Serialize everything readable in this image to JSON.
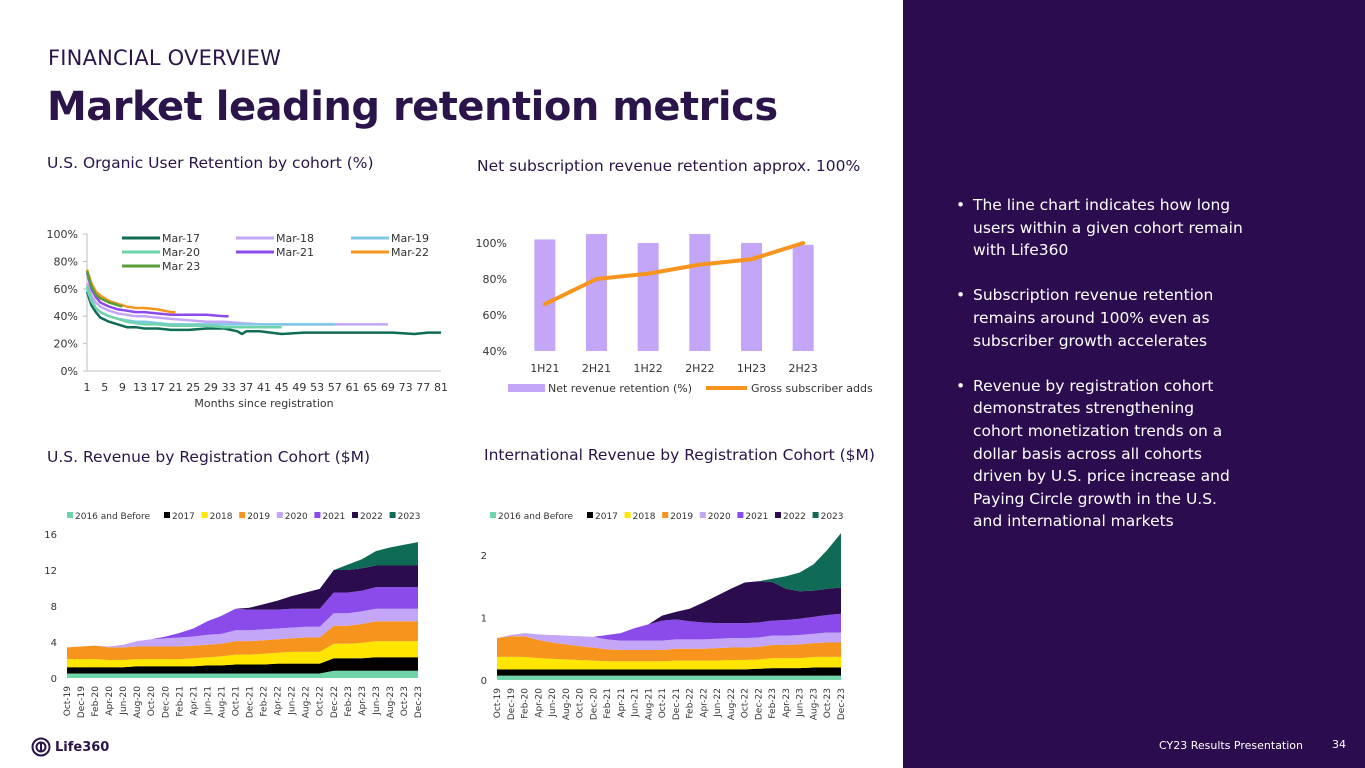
{
  "header": {
    "kicker": "FINANCIAL OVERVIEW",
    "title": "Market leading retention metrics"
  },
  "colors": {
    "brand_dark": "#2b0d4f",
    "lavender": "#c3a6f8",
    "orange": "#f7941d"
  },
  "bullets": [
    "The line chart indicates how long users within a given cohort remain with Life360",
    "Subscription revenue retention remains around 100% even as subscriber growth accelerates",
    "Revenue by registration cohort demonstrates strengthening cohort monetization trends on a dollar basis across all cohorts driven by U.S. price increase and Paying Circle growth in the U.S. and international markets"
  ],
  "footer": {
    "label": "CY23 Results Presentation",
    "page": "34",
    "logo_text": "Life360",
    "logo_icon": "life360-logo-icon"
  },
  "chart_data": [
    {
      "type": "line",
      "title": "U.S. Organic User Retention by cohort (%)",
      "xlabel": "Months since registration",
      "ylabel": "",
      "x_ticks": [
        "1",
        "5",
        "9",
        "13",
        "17",
        "21",
        "25",
        "29",
        "33",
        "37",
        "41",
        "45",
        "49",
        "53",
        "57",
        "61",
        "65",
        "69",
        "73",
        "77",
        "81"
      ],
      "xlim": [
        1,
        81
      ],
      "y_ticks": [
        "0%",
        "20%",
        "40%",
        "60%",
        "80%",
        "100%"
      ],
      "ylim": [
        0,
        100
      ],
      "legend_position": "top",
      "series": [
        {
          "name": "Mar-17",
          "color": "#0f6b55",
          "width": 2.5,
          "x": [
            1,
            2,
            3,
            4,
            6,
            8,
            10,
            12,
            14,
            17,
            20,
            24,
            28,
            32,
            35,
            36,
            37,
            40,
            45,
            50,
            55,
            60,
            65,
            70,
            75,
            78,
            81
          ],
          "values": [
            58,
            48,
            43,
            39,
            36,
            34,
            32,
            32,
            31,
            31,
            30,
            30,
            31,
            31,
            29,
            27,
            29,
            29,
            27,
            28,
            28,
            28,
            28,
            28,
            27,
            28,
            28
          ]
        },
        {
          "name": "Mar-18",
          "color": "#c3a6f8",
          "width": 2.5,
          "x": [
            1,
            2,
            3,
            4,
            6,
            8,
            10,
            12,
            14,
            17,
            20,
            24,
            28,
            32,
            36,
            40,
            45,
            50,
            55,
            60,
            65,
            69
          ],
          "values": [
            64,
            55,
            50,
            47,
            44,
            42,
            41,
            40,
            40,
            39,
            38,
            37,
            36,
            36,
            35,
            34,
            34,
            34,
            34,
            34,
            34,
            34
          ]
        },
        {
          "name": "Mar-19",
          "color": "#7ec8e3",
          "width": 2.5,
          "x": [
            1,
            2,
            3,
            4,
            6,
            8,
            10,
            12,
            14,
            17,
            20,
            24,
            28,
            32,
            36,
            40,
            45,
            50,
            55,
            57
          ],
          "values": [
            60,
            51,
            46,
            43,
            40,
            38,
            37,
            36,
            36,
            35,
            34,
            34,
            34,
            34,
            34,
            34,
            34,
            34,
            34,
            34
          ]
        },
        {
          "name": "Mar-20",
          "color": "#6fd4a8",
          "width": 2.5,
          "x": [
            1,
            2,
            3,
            4,
            6,
            8,
            10,
            12,
            14,
            17,
            20,
            24,
            28,
            32,
            36,
            40,
            45
          ],
          "values": [
            62,
            52,
            46,
            43,
            40,
            38,
            36,
            35,
            34,
            34,
            33,
            33,
            33,
            32,
            32,
            32,
            32
          ]
        },
        {
          "name": "Mar-21",
          "color": "#8b4bea",
          "width": 2.5,
          "x": [
            1,
            2,
            3,
            4,
            6,
            8,
            10,
            12,
            14,
            17,
            20,
            24,
            28,
            32,
            33
          ],
          "values": [
            72,
            60,
            54,
            50,
            47,
            45,
            44,
            43,
            43,
            42,
            41,
            41,
            41,
            40,
            40
          ]
        },
        {
          "name": "Mar-22",
          "color": "#f7941d",
          "width": 2.5,
          "x": [
            1,
            2,
            3,
            4,
            6,
            8,
            10,
            12,
            14,
            17,
            20,
            21
          ],
          "values": [
            74,
            64,
            58,
            55,
            51,
            49,
            47,
            46,
            46,
            45,
            43,
            43
          ]
        },
        {
          "name": "Mar 23",
          "color": "#5a9e3a",
          "width": 2.5,
          "x": [
            1,
            2,
            3,
            4,
            6,
            8,
            9
          ],
          "values": [
            73,
            62,
            56,
            53,
            50,
            48,
            47
          ]
        }
      ]
    },
    {
      "type": "bar",
      "title": "Net subscription revenue retention approx. 100%",
      "categories": [
        "1H21",
        "2H21",
        "1H22",
        "2H22",
        "1H23",
        "2H23"
      ],
      "y_ticks": [
        "40%",
        "60%",
        "80%",
        "100%"
      ],
      "ylim": [
        40,
        110
      ],
      "legend_position": "bottom",
      "series": [
        {
          "name": "Net revenue retention (%)",
          "kind": "bar",
          "color": "#c3a6f8",
          "values": [
            102,
            105,
            100,
            105,
            100,
            99
          ]
        },
        {
          "name": "Gross subscriber adds",
          "kind": "line",
          "color": "#f7941d",
          "values": [
            66,
            80,
            83,
            88,
            91,
            100
          ]
        }
      ]
    },
    {
      "type": "area",
      "stacked": true,
      "title": "U.S. Revenue by Registration Cohort ($M)",
      "x_ticks": [
        "Oct-19",
        "Dec-19",
        "Feb-20",
        "Apr-20",
        "Jun-20",
        "Aug-20",
        "Oct-20",
        "Dec-20",
        "Feb-21",
        "Apr-21",
        "Jun-21",
        "Aug-21",
        "Oct-21",
        "Dec-21",
        "Feb-22",
        "Apr-22",
        "Jun-22",
        "Aug-22",
        "Oct-22",
        "Dec-22",
        "Feb-23",
        "Apr-23",
        "Jun-23",
        "Aug-23",
        "Oct-23",
        "Dec-23"
      ],
      "y_ticks": [
        "0",
        "4",
        "8",
        "12",
        "16"
      ],
      "ylim": [
        0,
        16
      ],
      "legend_position": "top",
      "series": [
        {
          "name": "2016 and Before",
          "color": "#6fd4a8",
          "values": [
            0.5,
            0.5,
            0.5,
            0.5,
            0.5,
            0.5,
            0.5,
            0.5,
            0.5,
            0.5,
            0.5,
            0.5,
            0.5,
            0.5,
            0.5,
            0.5,
            0.5,
            0.5,
            0.5,
            0.8,
            0.8,
            0.8,
            0.8,
            0.8,
            0.8,
            0.8
          ]
        },
        {
          "name": "2017",
          "color": "#000000",
          "values": [
            0.7,
            0.7,
            0.7,
            0.7,
            0.7,
            0.8,
            0.8,
            0.8,
            0.8,
            0.8,
            0.9,
            0.9,
            1.0,
            1.0,
            1.0,
            1.1,
            1.1,
            1.1,
            1.1,
            1.4,
            1.4,
            1.4,
            1.5,
            1.5,
            1.5,
            1.5
          ]
        },
        {
          "name": "2018",
          "color": "#ffe600",
          "values": [
            0.9,
            0.9,
            0.9,
            0.8,
            0.8,
            0.8,
            0.8,
            0.8,
            0.8,
            0.9,
            0.9,
            1.0,
            1.1,
            1.1,
            1.2,
            1.2,
            1.3,
            1.3,
            1.3,
            1.6,
            1.6,
            1.7,
            1.8,
            1.8,
            1.8,
            1.8
          ]
        },
        {
          "name": "2019",
          "color": "#f7941d",
          "values": [
            1.3,
            1.4,
            1.5,
            1.4,
            1.4,
            1.4,
            1.4,
            1.4,
            1.4,
            1.4,
            1.4,
            1.4,
            1.5,
            1.5,
            1.5,
            1.5,
            1.5,
            1.6,
            1.6,
            2.0,
            2.0,
            2.1,
            2.2,
            2.2,
            2.2,
            2.2
          ]
        },
        {
          "name": "2020",
          "color": "#c3a6f8",
          "values": [
            0.0,
            0.0,
            0.0,
            0.1,
            0.3,
            0.6,
            0.8,
            0.9,
            1.0,
            1.0,
            1.1,
            1.1,
            1.2,
            1.2,
            1.2,
            1.2,
            1.2,
            1.2,
            1.2,
            1.4,
            1.4,
            1.4,
            1.4,
            1.4,
            1.4,
            1.4
          ]
        },
        {
          "name": "2021",
          "color": "#8b4bea",
          "values": [
            0.0,
            0.0,
            0.0,
            0.0,
            0.0,
            0.0,
            0.0,
            0.2,
            0.5,
            0.9,
            1.5,
            2.0,
            2.4,
            2.3,
            2.2,
            2.1,
            2.1,
            2.0,
            2.0,
            2.3,
            2.3,
            2.3,
            2.4,
            2.4,
            2.4,
            2.4
          ]
        },
        {
          "name": "2022",
          "color": "#2b0d4f",
          "values": [
            0.0,
            0.0,
            0.0,
            0.0,
            0.0,
            0.0,
            0.0,
            0.0,
            0.0,
            0.0,
            0.0,
            0.0,
            0.0,
            0.2,
            0.6,
            1.0,
            1.4,
            1.8,
            2.2,
            2.5,
            2.5,
            2.5,
            2.4,
            2.4,
            2.4,
            2.4
          ]
        },
        {
          "name": "2023",
          "color": "#0f6b55",
          "values": [
            0.0,
            0.0,
            0.0,
            0.0,
            0.0,
            0.0,
            0.0,
            0.0,
            0.0,
            0.0,
            0.0,
            0.0,
            0.0,
            0.0,
            0.0,
            0.0,
            0.0,
            0.0,
            0.0,
            0.0,
            0.6,
            1.0,
            1.6,
            2.0,
            2.3,
            2.6
          ]
        }
      ]
    },
    {
      "type": "area",
      "stacked": true,
      "title": "International Revenue by Registration Cohort ($M)",
      "x_ticks": [
        "Oct-19",
        "Dec-19",
        "Feb-20",
        "Apr-20",
        "Jun-20",
        "Aug-20",
        "Oct-20",
        "Dec-20",
        "Feb-21",
        "Apr-21",
        "Jun-21",
        "Aug-21",
        "Oct-21",
        "Dec-21",
        "Feb-22",
        "Apr-22",
        "Jun-22",
        "Aug-22",
        "Oct-22",
        "Dec-22",
        "Feb-23",
        "Apr-23",
        "Jun-23",
        "Aug-23",
        "Oct-23",
        "Dec-23"
      ],
      "y_ticks": [
        "0",
        "1",
        "2"
      ],
      "ylim": [
        0,
        2.4
      ],
      "legend_position": "top",
      "series": [
        {
          "name": "2016 and Before",
          "color": "#6fd4a8",
          "values": [
            0.07,
            0.07,
            0.07,
            0.07,
            0.07,
            0.07,
            0.07,
            0.07,
            0.07,
            0.07,
            0.07,
            0.07,
            0.07,
            0.07,
            0.07,
            0.07,
            0.07,
            0.07,
            0.07,
            0.07,
            0.07,
            0.07,
            0.07,
            0.07,
            0.07,
            0.07
          ]
        },
        {
          "name": "2017",
          "color": "#000000",
          "values": [
            0.1,
            0.1,
            0.1,
            0.1,
            0.1,
            0.1,
            0.1,
            0.1,
            0.1,
            0.1,
            0.1,
            0.1,
            0.1,
            0.1,
            0.1,
            0.1,
            0.1,
            0.1,
            0.1,
            0.11,
            0.12,
            0.12,
            0.12,
            0.13,
            0.13,
            0.13
          ]
        },
        {
          "name": "2018",
          "color": "#ffe600",
          "values": [
            0.2,
            0.2,
            0.2,
            0.18,
            0.17,
            0.16,
            0.15,
            0.14,
            0.13,
            0.13,
            0.13,
            0.13,
            0.13,
            0.14,
            0.14,
            0.14,
            0.14,
            0.15,
            0.15,
            0.15,
            0.16,
            0.16,
            0.16,
            0.17,
            0.17,
            0.17
          ]
        },
        {
          "name": "2019",
          "color": "#f7941d",
          "values": [
            0.3,
            0.33,
            0.33,
            0.29,
            0.26,
            0.24,
            0.22,
            0.21,
            0.19,
            0.18,
            0.18,
            0.18,
            0.18,
            0.19,
            0.19,
            0.19,
            0.2,
            0.2,
            0.2,
            0.2,
            0.21,
            0.21,
            0.22,
            0.22,
            0.23,
            0.23
          ]
        },
        {
          "name": "2020",
          "color": "#c3a6f8",
          "values": [
            0.0,
            0.02,
            0.05,
            0.09,
            0.12,
            0.14,
            0.16,
            0.17,
            0.16,
            0.15,
            0.15,
            0.15,
            0.15,
            0.15,
            0.15,
            0.15,
            0.15,
            0.15,
            0.15,
            0.15,
            0.15,
            0.15,
            0.15,
            0.15,
            0.16,
            0.16
          ]
        },
        {
          "name": "2021",
          "color": "#8b4bea",
          "values": [
            0.0,
            0.0,
            0.0,
            0.0,
            0.0,
            0.0,
            0.0,
            0.0,
            0.07,
            0.12,
            0.2,
            0.26,
            0.32,
            0.32,
            0.29,
            0.27,
            0.25,
            0.24,
            0.24,
            0.24,
            0.24,
            0.25,
            0.26,
            0.27,
            0.28,
            0.3
          ]
        },
        {
          "name": "2022",
          "color": "#2b0d4f",
          "values": [
            0.0,
            0.0,
            0.0,
            0.0,
            0.0,
            0.0,
            0.0,
            0.0,
            0.0,
            0.0,
            0.0,
            0.0,
            0.08,
            0.12,
            0.2,
            0.32,
            0.44,
            0.55,
            0.65,
            0.66,
            0.62,
            0.5,
            0.44,
            0.42,
            0.42,
            0.42
          ]
        },
        {
          "name": "2023",
          "color": "#0f6b55",
          "values": [
            0.0,
            0.0,
            0.0,
            0.0,
            0.0,
            0.0,
            0.0,
            0.0,
            0.0,
            0.0,
            0.0,
            0.0,
            0.0,
            0.0,
            0.0,
            0.0,
            0.0,
            0.0,
            0.0,
            0.0,
            0.05,
            0.2,
            0.3,
            0.42,
            0.62,
            0.87
          ]
        }
      ]
    }
  ]
}
